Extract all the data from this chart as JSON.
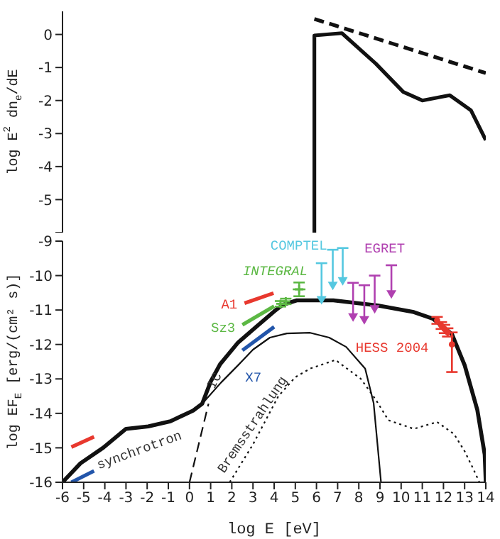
{
  "chart_data": [
    {
      "type": "line",
      "ylabel": "log E$^{2}$ dn$_{e}$/dE",
      "xlim": [
        -6,
        14
      ],
      "xticks": [
        -6,
        -5,
        -4,
        -3,
        -2,
        -1,
        0,
        1,
        2,
        3,
        4,
        5,
        6,
        7,
        8,
        9,
        10,
        11,
        12,
        13,
        14
      ],
      "ylim": [
        -6,
        0.7
      ],
      "yticks": [
        {
          "value": -6,
          "label": null
        },
        -5,
        -4,
        -3,
        -2,
        -1,
        0
      ],
      "tick_labels": "y",
      "series": [
        {
          "color": "#111111",
          "x": [
            5.9,
            5.9,
            7.2,
            8.8,
            10.1,
            11.0,
            12.3,
            13.3,
            14
          ],
          "values": [
            -6,
            -0.03,
            0.04,
            -0.88,
            -1.74,
            -2.0,
            -1.84,
            -2.3,
            -3.2
          ]
        },
        {
          "color": "#111111",
          "line_style": "dashed",
          "x": [
            5.9,
            14
          ],
          "values": [
            0.47,
            -1.17
          ]
        }
      ]
    },
    {
      "type": "line",
      "xlabel": "log E [eV]",
      "ylabel": "log EF$_{E}$ [erg/(cm² s)]",
      "xlim": [
        -6,
        14
      ],
      "xticks": [
        -6,
        -5,
        -4,
        -3,
        -2,
        -1,
        0,
        1,
        2,
        3,
        4,
        5,
        6,
        7,
        8,
        9,
        10,
        11,
        12,
        13,
        14
      ],
      "ylim": [
        -16,
        -9
      ],
      "yticks": [
        -16,
        -15,
        -14,
        -13,
        -12,
        -11,
        -10,
        -9
      ],
      "annotations": [
        "synchrotron"
      ],
      "series": [
        {
          "color": "#111111",
          "x": [
            -6,
            -5.15,
            -4.08,
            -3.0,
            -1.95,
            -0.9,
            0.17,
            0.6,
            1.0,
            1.45,
            2.3,
            3.15,
            4.0,
            4.4,
            5.07,
            6.8,
            8.9,
            10.6,
            11.5,
            12.4,
            13.0,
            13.6,
            13.95,
            14
          ],
          "values": [
            -16,
            -15.45,
            -15.0,
            -14.45,
            -14.38,
            -14.23,
            -13.92,
            -13.72,
            -13.08,
            -12.57,
            -11.94,
            -11.49,
            -11.04,
            -10.85,
            -10.72,
            -10.72,
            -10.87,
            -11.06,
            -11.25,
            -11.7,
            -12.6,
            -13.9,
            -15.2,
            -16
          ]
        },
        {
          "color": "#111111",
          "x": [
            0.6,
            1.5,
            2.3,
            3.0,
            3.8,
            4.6,
            5.7,
            6.6,
            7.4,
            8.3,
            8.7,
            9.05
          ],
          "values": [
            -13.72,
            -13.1,
            -12.6,
            -12.15,
            -11.8,
            -11.68,
            -11.66,
            -11.8,
            -12.07,
            -12.7,
            -13.7,
            -16
          ]
        },
        {
          "name": "IC",
          "color": "#111111",
          "line_style": "dashed",
          "x": [
            0,
            0.9
          ],
          "values": [
            -16,
            -13.72
          ]
        },
        {
          "name": "Bremsstrahlung",
          "color": "#111111",
          "line_style": "dotted",
          "x": [
            1.9,
            3.0,
            4.2,
            5.0,
            5.7,
            6.9,
            8.1,
            8.8,
            9.4,
            10.6,
            11.7,
            12.5,
            13.0,
            13.4,
            13.7
          ],
          "values": [
            -16,
            -14.9,
            -13.5,
            -12.95,
            -12.7,
            -12.45,
            -13.0,
            -13.6,
            -14.2,
            -14.45,
            -14.25,
            -14.6,
            -15.1,
            -15.6,
            -16
          ]
        },
        {
          "color": "#e8382e",
          "x": [
            -5.58,
            -4.51
          ],
          "values": [
            -14.98,
            -14.68
          ]
        },
        {
          "name": "A1",
          "color": "#e8382e",
          "x": [
            2.6,
            3.97
          ],
          "values": [
            -10.8,
            -10.51
          ]
        },
        {
          "name": "Sz3",
          "color": "#5cb844",
          "x": [
            2.5,
            4.0
          ],
          "values": [
            -11.43,
            -10.89
          ]
        },
        {
          "color": "#2255aa",
          "x": [
            -5.58,
            -4.51
          ],
          "values": [
            -16,
            -15.67
          ]
        },
        {
          "name": "X7",
          "color": "#2255aa",
          "x": [
            2.5,
            4.0
          ],
          "values": [
            -12.17,
            -11.49
          ]
        },
        {
          "name": "COMPTEL",
          "type": "scatter",
          "marker": "triangle",
          "color": "#55c8e0",
          "x": [
            6.24,
            6.77,
            7.24
          ],
          "values": [
            -10.72,
            -10.3,
            -10.17
          ],
          "errors": [
            [
              -10.72,
              -9.64
            ],
            [
              -10.3,
              -9.25
            ],
            [
              -10.17,
              -9.2
            ]
          ]
        },
        {
          "name": "EGRET",
          "type": "scatter",
          "marker": "triangle",
          "color": "#b040b0",
          "x": [
            7.73,
            8.26,
            8.75,
            9.54
          ],
          "values": [
            -11.22,
            -11.3,
            -10.98,
            -10.55
          ],
          "errors": [
            [
              -11.22,
              -10.21
            ],
            [
              -11.3,
              -10.28
            ],
            [
              -10.98,
              -10.0
            ],
            [
              -10.55,
              -9.7
            ]
          ]
        },
        {
          "name": "INTEGRAL",
          "type": "scatter",
          "marker": "cross",
          "color": "#5cb844",
          "x": [
            4.3,
            4.55,
            5.18
          ],
          "values": [
            -10.82,
            -10.75,
            -10.4
          ],
          "errors": [
            0.08,
            0.08,
            0.2
          ],
          "xerrors": [
            0.1,
            0.1,
            0.3
          ]
        },
        {
          "name": "HESS 2004",
          "type": "scatter",
          "marker": "circle",
          "color": "#e8382e",
          "x": [
            11.7,
            11.9,
            12.05,
            12.2,
            12.4
          ],
          "values": [
            -11.3,
            -11.45,
            -11.55,
            -11.65,
            -12.0
          ],
          "errors": [
            0.1,
            0.1,
            0.12,
            0.12,
            [
              -12.8,
              -11.65
            ]
          ]
        }
      ]
    }
  ]
}
